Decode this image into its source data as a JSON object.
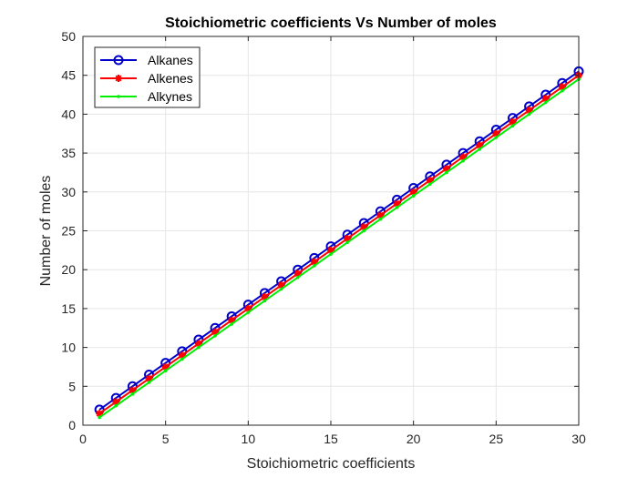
{
  "chart_data": {
    "type": "line",
    "title": "Stoichiometric coefficients Vs Number of moles",
    "xlabel": "Stoichiometric coefficients",
    "ylabel": "Number of moles",
    "xlim": [
      0,
      30
    ],
    "ylim": [
      0,
      50
    ],
    "xticks": [
      "0",
      "5",
      "10",
      "15",
      "20",
      "25",
      "30"
    ],
    "yticks": [
      "0",
      "5",
      "10",
      "15",
      "20",
      "25",
      "30",
      "35",
      "40",
      "45",
      "50"
    ],
    "grid": true,
    "legend_position": "top-left",
    "x": [
      1,
      2,
      3,
      4,
      5,
      6,
      7,
      8,
      9,
      10,
      11,
      12,
      13,
      14,
      15,
      16,
      17,
      18,
      19,
      20,
      21,
      22,
      23,
      24,
      25,
      26,
      27,
      28,
      29,
      30
    ],
    "series": [
      {
        "name": "Alkanes",
        "color": "#0000cc",
        "marker": "circle",
        "values": [
          2,
          3.5,
          5,
          6.5,
          8,
          9.5,
          11,
          12.5,
          14,
          15.5,
          17,
          18.5,
          20,
          21.5,
          23,
          24.5,
          26,
          27.5,
          29,
          30.5,
          32,
          33.5,
          35,
          36.5,
          38,
          39.5,
          41,
          42.5,
          44,
          45.5
        ]
      },
      {
        "name": "Alkenes",
        "color": "#ff0000",
        "marker": "asterisk",
        "values": [
          1.5,
          3,
          4.5,
          6,
          7.5,
          9,
          10.5,
          12,
          13.5,
          15,
          16.5,
          18,
          19.5,
          21,
          22.5,
          24,
          25.5,
          27,
          28.5,
          30,
          31.5,
          33,
          34.5,
          36,
          37.5,
          39,
          40.5,
          42,
          43.5,
          45
        ]
      },
      {
        "name": "Alkynes",
        "color": "#00ee00",
        "marker": "point",
        "values": [
          1,
          2.5,
          4,
          5.5,
          7,
          8.5,
          10,
          11.5,
          13,
          14.5,
          16,
          17.5,
          19,
          20.5,
          22,
          23.5,
          25,
          26.5,
          28,
          29.5,
          31,
          32.5,
          34,
          35.5,
          37,
          38.5,
          40,
          41.5,
          43,
          44.5
        ]
      }
    ]
  }
}
